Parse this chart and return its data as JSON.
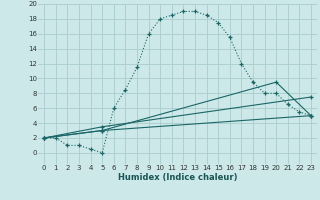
{
  "xlabel": "Humidex (Indice chaleur)",
  "bg_color": "#cce8e8",
  "grid_color": "#aacccc",
  "line_color": "#1a6666",
  "xlim": [
    -0.5,
    23.5
  ],
  "ylim": [
    -1.5,
    20
  ],
  "xticks": [
    0,
    1,
    2,
    3,
    4,
    5,
    6,
    7,
    8,
    9,
    10,
    11,
    12,
    13,
    14,
    15,
    16,
    17,
    18,
    19,
    20,
    21,
    22,
    23
  ],
  "yticks": [
    0,
    2,
    4,
    6,
    8,
    10,
    12,
    14,
    16,
    18,
    20
  ],
  "curve1_x": [
    0,
    1,
    2,
    3,
    4,
    5,
    6,
    7,
    8,
    9,
    10,
    11,
    12,
    13,
    14,
    15,
    16,
    17,
    18,
    19,
    20,
    21,
    22,
    23
  ],
  "curve1_y": [
    2,
    2,
    1,
    1,
    0.5,
    0,
    6,
    8.5,
    11.5,
    16,
    18,
    18.5,
    19,
    19,
    18.5,
    17.5,
    15.5,
    12,
    9.5,
    8,
    8,
    6.5,
    5.5,
    5
  ],
  "curve2_x": [
    0,
    5,
    23
  ],
  "curve2_y": [
    2,
    3,
    5
  ],
  "curve3_x": [
    0,
    5,
    23
  ],
  "curve3_y": [
    2,
    3.5,
    7.5
  ],
  "curve4_x": [
    0,
    5,
    20,
    23
  ],
  "curve4_y": [
    2,
    3,
    9.5,
    5
  ]
}
